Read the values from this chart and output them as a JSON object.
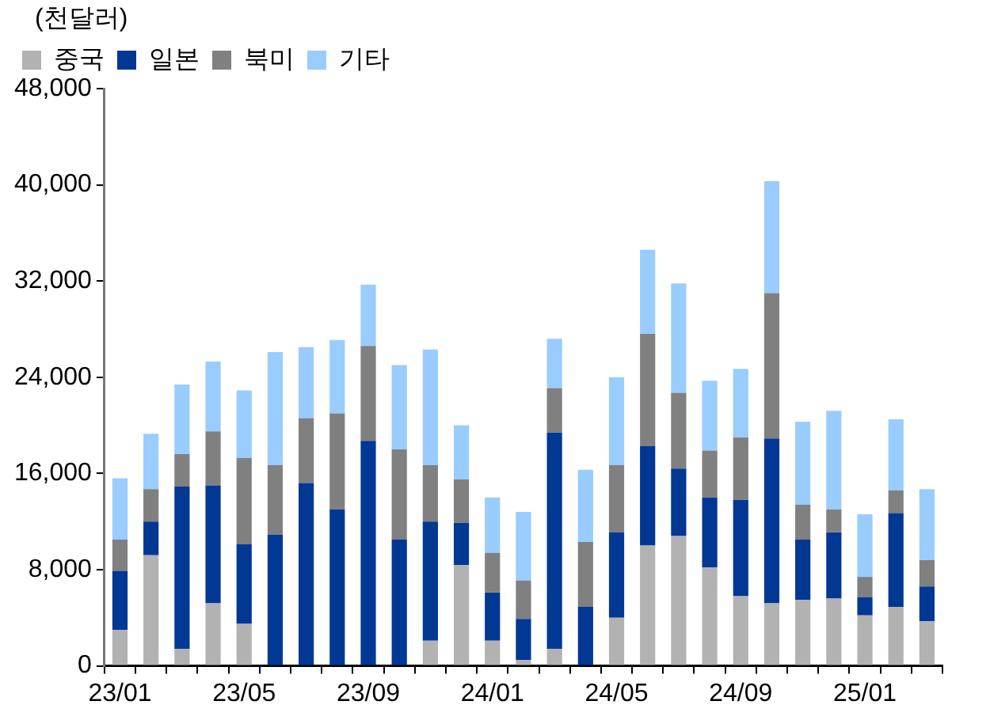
{
  "chart_data": {
    "type": "bar",
    "stacked": true,
    "ylabel": "(천달러)",
    "categories": [
      "23/01",
      null,
      null,
      null,
      "23/05",
      null,
      null,
      null,
      "23/09",
      null,
      null,
      null,
      "24/01",
      null,
      null,
      null,
      "24/05",
      null,
      null,
      null,
      "24/09",
      null,
      null,
      null,
      "25/01",
      null,
      null
    ],
    "series": [
      {
        "name": "중국",
        "color": "#b2b2b2",
        "values": [
          3000,
          9200,
          1400,
          5200,
          3500,
          0,
          0,
          0,
          0,
          0,
          2100,
          8400,
          2100,
          500,
          1400,
          0,
          4000,
          10000,
          10800,
          8200,
          5800,
          5200,
          5500,
          5600,
          4200,
          4900,
          3700
        ]
      },
      {
        "name": "일본",
        "color": "#003893",
        "values": [
          4900,
          2800,
          13500,
          9800,
          6600,
          10900,
          15200,
          13000,
          18700,
          10500,
          9900,
          3500,
          4000,
          3400,
          18000,
          4900,
          7100,
          8300,
          5600,
          5800,
          8000,
          13700,
          5000,
          5500,
          1500,
          7800,
          2900
        ]
      },
      {
        "name": "북미",
        "color": "#808080",
        "values": [
          2600,
          2700,
          2700,
          4500,
          7200,
          5800,
          5400,
          8000,
          7900,
          7500,
          4700,
          3600,
          3300,
          3200,
          3700,
          5400,
          5600,
          9300,
          6300,
          3900,
          5200,
          12100,
          2900,
          1900,
          1700,
          1900,
          2200
        ]
      },
      {
        "name": "기타",
        "color": "#99ccff",
        "values": [
          5100,
          4600,
          5800,
          5800,
          5600,
          9400,
          5900,
          6100,
          5100,
          7000,
          9600,
          4500,
          4600,
          5700,
          4100,
          6000,
          7300,
          7000,
          9100,
          5800,
          5700,
          9300,
          6900,
          8200,
          5200,
          5900,
          5900
        ]
      }
    ],
    "ylim": [
      0,
      48000
    ],
    "yticks": [
      0,
      {
        "value": 8000,
        "label": "8,000"
      },
      {
        "value": 16000,
        "label": "16,000"
      },
      {
        "value": 24000,
        "label": "24,000"
      },
      {
        "value": 32000,
        "label": "32,000"
      },
      {
        "value": 40000,
        "label": "40,000"
      },
      {
        "value": 48000,
        "label": "48,000"
      }
    ],
    "grid": false,
    "legend": "top left"
  }
}
